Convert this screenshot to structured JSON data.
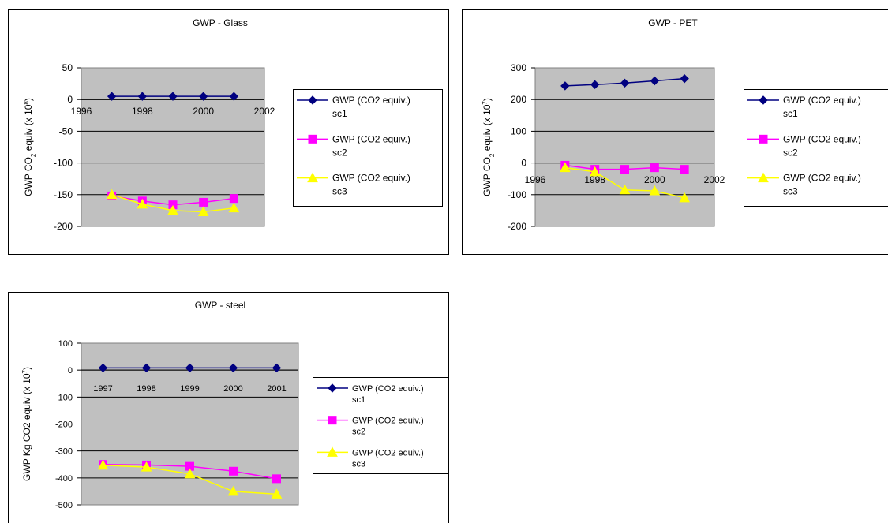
{
  "chart_data": [
    {
      "type": "line",
      "title": "GWP - Glass",
      "ylabel": "GWP CO2 equiv (x 10^8)",
      "ylabel_parts": [
        "GWP CO",
        "2",
        " equiv (x 10",
        "8",
        ")"
      ],
      "x": [
        1997,
        1998,
        1999,
        2000,
        2001
      ],
      "xticks": [
        "1996",
        "1998",
        "2000",
        "2002"
      ],
      "xlim": [
        1996,
        2002
      ],
      "ylim": [
        -200,
        50
      ],
      "yticks": [
        50,
        0,
        -50,
        -100,
        -150,
        -200
      ],
      "grid": true,
      "legend": "right",
      "series": [
        {
          "name": "GWP (CO2 equiv.) sc1",
          "name_lines": [
            "GWP (CO2 equiv.)",
            "sc1"
          ],
          "color": "#000080",
          "marker": "diamond",
          "values": [
            5,
            5,
            5,
            5,
            5
          ]
        },
        {
          "name": "GWP (CO2 equiv.) sc2",
          "name_lines": [
            "GWP (CO2 equiv.)",
            "sc2"
          ],
          "color": "#ff00ff",
          "marker": "square",
          "values": [
            -152,
            -160,
            -166,
            -162,
            -156
          ]
        },
        {
          "name": "GWP (CO2 equiv.) sc3",
          "name_lines": [
            "GWP (CO2 equiv.)",
            "sc3"
          ],
          "color": "#ffff00",
          "marker": "triangle",
          "values": [
            -150,
            -165,
            -175,
            -177,
            -171
          ]
        }
      ]
    },
    {
      "type": "line",
      "title": "GWP - PET",
      "ylabel": "GWP CO2 equiv (x 10^7)",
      "ylabel_parts": [
        "GWP CO",
        "2",
        " equiv (x 10",
        "7",
        ")"
      ],
      "x": [
        1997,
        1998,
        1999,
        2000,
        2001
      ],
      "xticks": [
        "1996",
        "1998",
        "2000",
        "2002"
      ],
      "xlim": [
        1996,
        2002
      ],
      "ylim": [
        -200,
        300
      ],
      "yticks": [
        300,
        200,
        100,
        0,
        -100,
        -200
      ],
      "grid": true,
      "legend": "right",
      "series": [
        {
          "name": "GWP (CO2 equiv.) sc1",
          "name_lines": [
            "GWP (CO2 equiv.)",
            "sc1"
          ],
          "color": "#000080",
          "marker": "diamond",
          "values": [
            243,
            247,
            252,
            259,
            266
          ]
        },
        {
          "name": "GWP (CO2 equiv.) sc2",
          "name_lines": [
            "GWP (CO2 equiv.)",
            "sc2"
          ],
          "color": "#ff00ff",
          "marker": "square",
          "values": [
            -7,
            -20,
            -20,
            -15,
            -20
          ]
        },
        {
          "name": "GWP (CO2 equiv.) sc3",
          "name_lines": [
            "GWP (CO2 equiv.)",
            "sc3"
          ],
          "color": "#ffff00",
          "marker": "triangle",
          "values": [
            -15,
            -28,
            -85,
            -88,
            -110
          ]
        }
      ]
    },
    {
      "type": "line",
      "title": "GWP - steel",
      "ylabel": "GWP Kg CO2 equiv (x 10^7)",
      "ylabel_parts": [
        "GWP Kg CO2 equiv (x 10",
        "7",
        ")"
      ],
      "categories": [
        "1997",
        "1998",
        "1999",
        "2000",
        "2001"
      ],
      "ylim": [
        -500,
        100
      ],
      "yticks": [
        100,
        0,
        -100,
        -200,
        -300,
        -400,
        -500
      ],
      "grid": true,
      "legend": "right",
      "series": [
        {
          "name": "GWP (CO2 equiv.) sc1",
          "name_lines": [
            "GWP (CO2 equiv.)",
            "sc1"
          ],
          "color": "#000080",
          "marker": "diamond",
          "values": [
            8,
            8,
            8,
            8,
            8
          ]
        },
        {
          "name": "GWP (CO2 equiv.) sc2",
          "name_lines": [
            "GWP (CO2 equiv.)",
            "sc2"
          ],
          "color": "#ff00ff",
          "marker": "square",
          "values": [
            -350,
            -352,
            -357,
            -375,
            -403
          ]
        },
        {
          "name": "GWP (CO2 equiv.) sc3",
          "name_lines": [
            "GWP (CO2 equiv.)",
            "sc3"
          ],
          "color": "#ffff00",
          "marker": "triangle",
          "values": [
            -353,
            -360,
            -385,
            -450,
            -460
          ]
        }
      ]
    }
  ]
}
